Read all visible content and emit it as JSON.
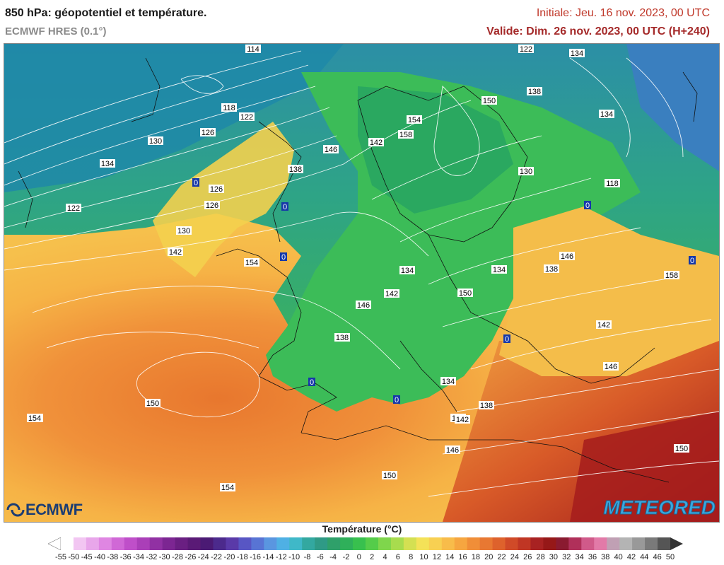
{
  "header": {
    "title": "850 hPa: géopotentiel et température.",
    "model": "ECMWF HRES (0.1°)",
    "initial": "Initiale: Jeu. 16 nov. 2023, 00 UTC",
    "valid": "Valide: Dim. 26 nov. 2023, 00 UTC (H+240)"
  },
  "logos": {
    "left": "ECMWF",
    "right": "METEORED"
  },
  "legend": {
    "title": "Température (°C)",
    "ticks": [
      "-55",
      "-50",
      "-45",
      "-40",
      "-38",
      "-36",
      "-34",
      "-32",
      "-30",
      "-28",
      "-26",
      "-24",
      "-22",
      "-20",
      "-18",
      "-16",
      "-14",
      "-12",
      "-10",
      "-8",
      "-6",
      "-4",
      "-2",
      "0",
      "2",
      "4",
      "6",
      "8",
      "10",
      "12",
      "14",
      "16",
      "18",
      "20",
      "22",
      "24",
      "26",
      "28",
      "30",
      "32",
      "34",
      "36",
      "38",
      "40",
      "42",
      "44",
      "46",
      "50"
    ],
    "colors": [
      "#ffffff",
      "#f2c6f2",
      "#e8a6ea",
      "#df86e2",
      "#d068d6",
      "#bf4fc9",
      "#aa3fb8",
      "#9131a3",
      "#7c2692",
      "#6a1f82",
      "#5a1a76",
      "#4b1a74",
      "#4c2a8c",
      "#5a3aa8",
      "#5856c4",
      "#5874d4",
      "#5a96e0",
      "#4fb0e4",
      "#3fb8c8",
      "#33a8a0",
      "#2f9a86",
      "#2fa06a",
      "#2fb05a",
      "#38c04e",
      "#55cc4a",
      "#7fd64c",
      "#a8dc4e",
      "#d4e052",
      "#f4e258",
      "#f8d052",
      "#f8bc4a",
      "#f6a640",
      "#f08e38",
      "#e87832",
      "#de622c",
      "#d04a28",
      "#c03624",
      "#a82222",
      "#961818",
      "#8a1a30",
      "#b0305a",
      "#d05a8a",
      "#e27aa8",
      "#c0a0b4",
      "#b4b4b4",
      "#999999",
      "#7a7a7a",
      "#555555"
    ],
    "color_labels_note": ""
  },
  "map": {
    "geopotential_labels": [
      "114",
      "118",
      "122",
      "126",
      "130",
      "134",
      "138",
      "142",
      "146",
      "150",
      "154",
      "158"
    ],
    "freezing_marker": "0",
    "contour_labels": [
      {
        "v": "114"
      },
      {
        "v": "122"
      },
      {
        "v": "134"
      },
      {
        "v": "118"
      },
      {
        "v": "122"
      },
      {
        "v": "126"
      },
      {
        "v": "130"
      },
      {
        "v": "134"
      },
      {
        "v": "138"
      },
      {
        "v": "142"
      },
      {
        "v": "146"
      },
      {
        "v": "150"
      },
      {
        "v": "154"
      },
      {
        "v": "158"
      },
      {
        "v": "138"
      },
      {
        "v": "130"
      },
      {
        "v": "134"
      },
      {
        "v": "118"
      },
      {
        "v": "122"
      },
      {
        "v": "126"
      },
      {
        "v": "126"
      },
      {
        "v": "130"
      },
      {
        "v": "142"
      },
      {
        "v": "146"
      },
      {
        "v": "138"
      },
      {
        "v": "134"
      },
      {
        "v": "134"
      },
      {
        "v": "142"
      },
      {
        "v": "146"
      },
      {
        "v": "150"
      },
      {
        "v": "138"
      },
      {
        "v": "154"
      },
      {
        "v": "150"
      },
      {
        "v": "142"
      },
      {
        "v": "146"
      },
      {
        "v": "134"
      },
      {
        "v": "138"
      },
      {
        "v": "142"
      },
      {
        "v": "146"
      },
      {
        "v": "150"
      },
      {
        "v": "150"
      },
      {
        "v": "154"
      },
      {
        "v": "158"
      },
      {
        "v": "154"
      },
      {
        "v": "154"
      },
      {
        "v": "150"
      },
      {
        "v": "142"
      }
    ]
  }
}
